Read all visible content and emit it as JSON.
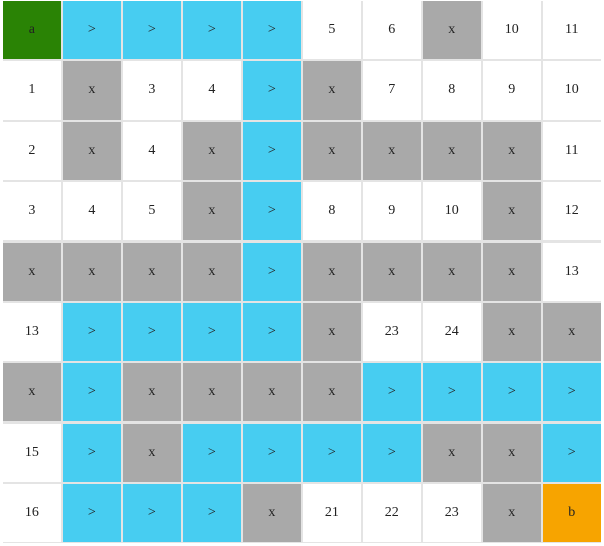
{
  "colors": {
    "empty": "#ffffff",
    "wall": "#a9a9a9",
    "path": "#47cdf1",
    "start": "#2a8305",
    "end": "#f7a400",
    "grid_line": "#e4e4e4"
  },
  "grid": {
    "rows": 9,
    "cols": 10,
    "cells": [
      [
        {
          "t": "start",
          "v": "a"
        },
        {
          "t": "path",
          "v": ">"
        },
        {
          "t": "path",
          "v": ">"
        },
        {
          "t": "path",
          "v": ">"
        },
        {
          "t": "path",
          "v": ">"
        },
        {
          "t": "empty",
          "v": "5"
        },
        {
          "t": "empty",
          "v": "6"
        },
        {
          "t": "wall",
          "v": "x"
        },
        {
          "t": "empty",
          "v": "10"
        },
        {
          "t": "empty",
          "v": "11"
        }
      ],
      [
        {
          "t": "empty",
          "v": "1"
        },
        {
          "t": "wall",
          "v": "x"
        },
        {
          "t": "empty",
          "v": "3"
        },
        {
          "t": "empty",
          "v": "4"
        },
        {
          "t": "path",
          "v": ">"
        },
        {
          "t": "wall",
          "v": "x"
        },
        {
          "t": "empty",
          "v": "7"
        },
        {
          "t": "empty",
          "v": "8"
        },
        {
          "t": "empty",
          "v": "9"
        },
        {
          "t": "empty",
          "v": "10"
        }
      ],
      [
        {
          "t": "empty",
          "v": "2"
        },
        {
          "t": "wall",
          "v": "x"
        },
        {
          "t": "empty",
          "v": "4"
        },
        {
          "t": "wall",
          "v": "x"
        },
        {
          "t": "path",
          "v": ">"
        },
        {
          "t": "wall",
          "v": "x"
        },
        {
          "t": "wall",
          "v": "x"
        },
        {
          "t": "wall",
          "v": "x"
        },
        {
          "t": "wall",
          "v": "x"
        },
        {
          "t": "empty",
          "v": "11"
        }
      ],
      [
        {
          "t": "empty",
          "v": "3"
        },
        {
          "t": "empty",
          "v": "4"
        },
        {
          "t": "empty",
          "v": "5"
        },
        {
          "t": "wall",
          "v": "x"
        },
        {
          "t": "path",
          "v": ">"
        },
        {
          "t": "empty",
          "v": "8"
        },
        {
          "t": "empty",
          "v": "9"
        },
        {
          "t": "empty",
          "v": "10"
        },
        {
          "t": "wall",
          "v": "x"
        },
        {
          "t": "empty",
          "v": "12"
        }
      ],
      [
        {
          "t": "wall",
          "v": "x"
        },
        {
          "t": "wall",
          "v": "x"
        },
        {
          "t": "wall",
          "v": "x"
        },
        {
          "t": "wall",
          "v": "x"
        },
        {
          "t": "path",
          "v": ">"
        },
        {
          "t": "wall",
          "v": "x"
        },
        {
          "t": "wall",
          "v": "x"
        },
        {
          "t": "wall",
          "v": "x"
        },
        {
          "t": "wall",
          "v": "x"
        },
        {
          "t": "empty",
          "v": "13"
        }
      ],
      [
        {
          "t": "empty",
          "v": "13"
        },
        {
          "t": "path",
          "v": ">"
        },
        {
          "t": "path",
          "v": ">"
        },
        {
          "t": "path",
          "v": ">"
        },
        {
          "t": "path",
          "v": ">"
        },
        {
          "t": "wall",
          "v": "x"
        },
        {
          "t": "empty",
          "v": "23"
        },
        {
          "t": "empty",
          "v": "24"
        },
        {
          "t": "wall",
          "v": "x"
        },
        {
          "t": "wall",
          "v": "x"
        }
      ],
      [
        {
          "t": "wall",
          "v": "x"
        },
        {
          "t": "path",
          "v": ">"
        },
        {
          "t": "wall",
          "v": "x"
        },
        {
          "t": "wall",
          "v": "x"
        },
        {
          "t": "wall",
          "v": "x"
        },
        {
          "t": "wall",
          "v": "x"
        },
        {
          "t": "path",
          "v": ">"
        },
        {
          "t": "path",
          "v": ">"
        },
        {
          "t": "path",
          "v": ">"
        },
        {
          "t": "path",
          "v": ">"
        }
      ],
      [
        {
          "t": "empty",
          "v": "15"
        },
        {
          "t": "path",
          "v": ">"
        },
        {
          "t": "wall",
          "v": "x"
        },
        {
          "t": "path",
          "v": ">"
        },
        {
          "t": "path",
          "v": ">"
        },
        {
          "t": "path",
          "v": ">"
        },
        {
          "t": "path",
          "v": ">"
        },
        {
          "t": "wall",
          "v": "x"
        },
        {
          "t": "wall",
          "v": "x"
        },
        {
          "t": "path",
          "v": ">"
        }
      ],
      [
        {
          "t": "empty",
          "v": "16"
        },
        {
          "t": "path",
          "v": ">"
        },
        {
          "t": "path",
          "v": ">"
        },
        {
          "t": "path",
          "v": ">"
        },
        {
          "t": "wall",
          "v": "x"
        },
        {
          "t": "empty",
          "v": "21"
        },
        {
          "t": "empty",
          "v": "22"
        },
        {
          "t": "empty",
          "v": "23"
        },
        {
          "t": "wall",
          "v": "x"
        },
        {
          "t": "end",
          "v": "b"
        }
      ]
    ]
  }
}
